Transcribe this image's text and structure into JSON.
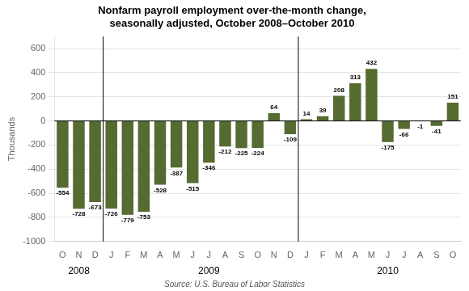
{
  "chart_data": {
    "type": "bar",
    "title": "Nonfarm payroll employment over-the-month change,\nseasonally adjusted, October 2008–October 2010",
    "ylabel": "Thousands",
    "source": "Source: U.S. Bureau of Labor Statistics",
    "categories": [
      "O",
      "N",
      "D",
      "J",
      "F",
      "M",
      "A",
      "M",
      "J",
      "J",
      "A",
      "S",
      "O",
      "N",
      "D",
      "J",
      "F",
      "M",
      "A",
      "M",
      "J",
      "J",
      "A",
      "S",
      "O"
    ],
    "values": [
      -554,
      -728,
      -673,
      -726,
      -779,
      -753,
      -528,
      -387,
      -515,
      -346,
      -212,
      -225,
      -224,
      64,
      -109,
      14,
      39,
      208,
      313,
      432,
      -175,
      -66,
      -1,
      -41,
      151
    ],
    "color": "#556B2F",
    "ylim": [
      -1000,
      700
    ],
    "yticks": [
      -1000,
      -800,
      -600,
      -400,
      -200,
      0,
      200,
      400,
      600
    ],
    "grid": true,
    "data_labels": true,
    "annotations": [
      {
        "text": "2008",
        "x": 1.0
      },
      {
        "text": "2009",
        "x": 9.0
      },
      {
        "text": "2010",
        "x": 20.0
      },
      {
        "type": "vline",
        "x": 2.5
      },
      {
        "type": "vline",
        "x": 14.5
      },
      {
        "type": "hline",
        "y": 0
      }
    ]
  }
}
